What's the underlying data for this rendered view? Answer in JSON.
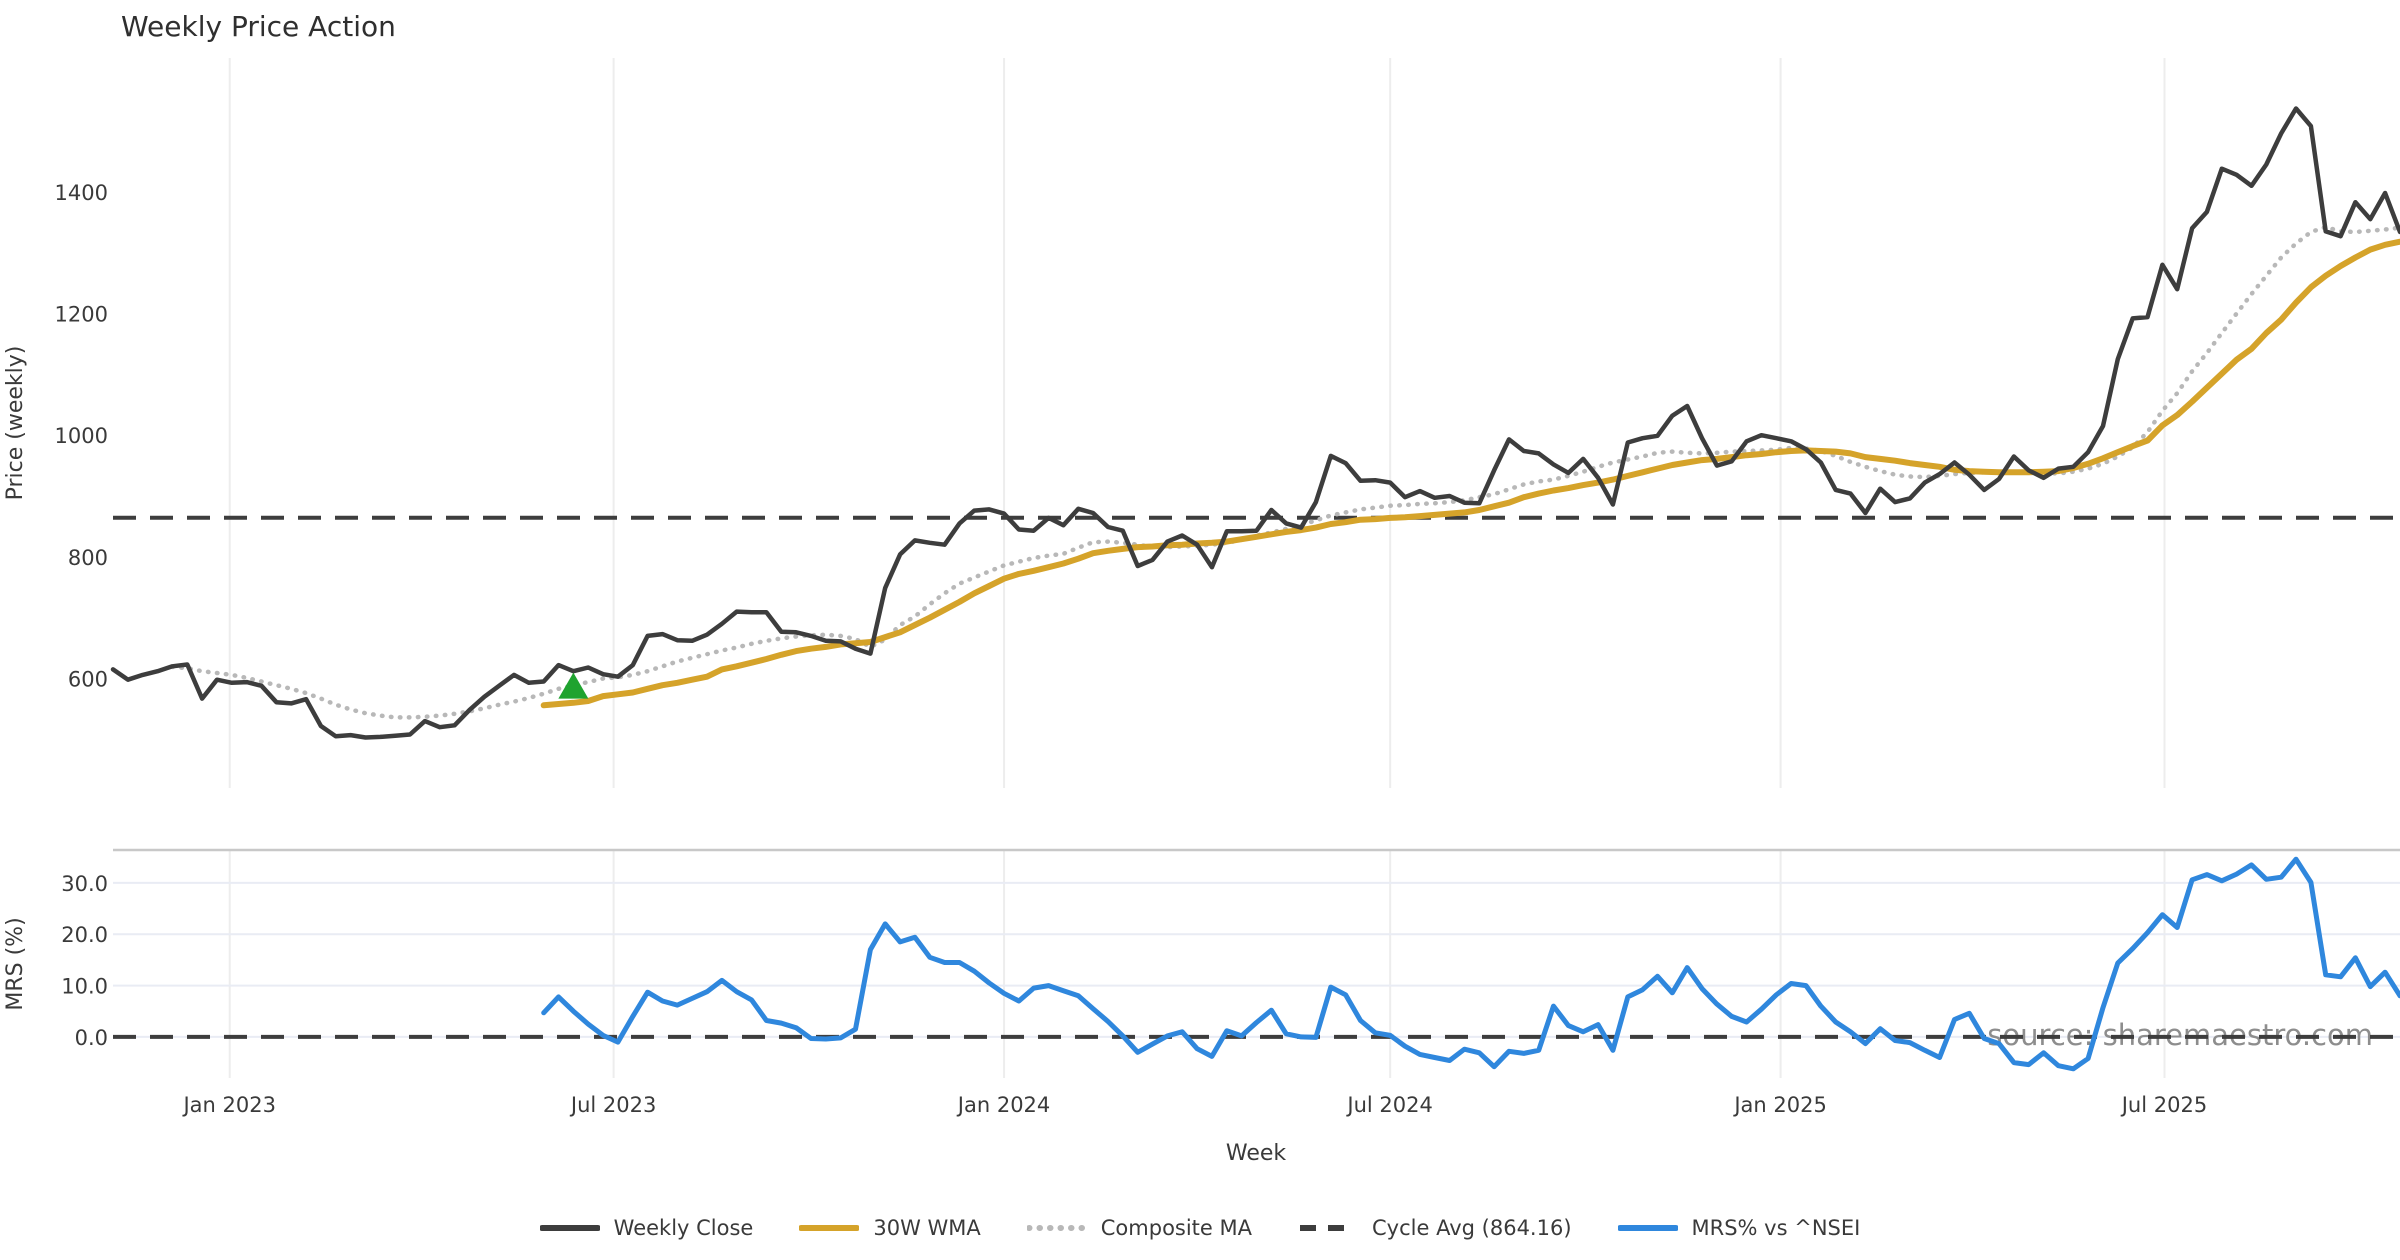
{
  "page": {
    "title": "Weekly Price Action",
    "watermark": "source: sharemaestro.com"
  },
  "colors": {
    "close": "#3d3d3d",
    "wma": "#d5a32a",
    "composite": "#b8b8b8",
    "cycle_avg": "#3d3d3d",
    "mrs": "#2f87dd",
    "marker_green": "#1fa32f",
    "grid_vertical": "#ededed",
    "grid_horizontal": "#e9ecf4",
    "panel_spine": "#c8c8c8",
    "text": "#3a3a3a",
    "watermark_text": "#8d8d8d"
  },
  "legend": [
    {
      "label": "Weekly Close",
      "color": "#3d3d3d",
      "style": "solid"
    },
    {
      "label": "30W WMA",
      "color": "#d5a32a",
      "style": "solid"
    },
    {
      "label": "Composite MA",
      "color": "#b8b8b8",
      "style": "dotted"
    },
    {
      "label": "Cycle Avg (864.16)",
      "color": "#3d3d3d",
      "style": "dashed"
    },
    {
      "label": "MRS% vs ^NSEI",
      "color": "#2f87dd",
      "style": "solid"
    }
  ],
  "chart_data": [
    {
      "type": "line",
      "panel": "price",
      "title": "Weekly Price Action",
      "xlabel": "Week",
      "ylabel": "Price (weekly)",
      "ylim": [
        420,
        1620
      ],
      "grid": "vertical-only",
      "yticks": [
        {
          "value": 600,
          "label": "600"
        },
        {
          "value": 800,
          "label": "800"
        },
        {
          "value": 1000,
          "label": "1000"
        },
        {
          "value": 1200,
          "label": "1200"
        },
        {
          "value": 1400,
          "label": "1400"
        }
      ],
      "x_ticks": [
        {
          "week": 7.86,
          "label": "Jan 2023"
        },
        {
          "week": 33.71,
          "label": "Jul 2023"
        },
        {
          "week": 60.0,
          "label": "Jan 2024"
        },
        {
          "week": 86.0,
          "label": "Jul 2024"
        },
        {
          "week": 112.29,
          "label": "Jan 2025"
        },
        {
          "week": 138.14,
          "label": "Jul 2025"
        }
      ],
      "hlines": [
        {
          "name": "Cycle Avg (864.16)",
          "value": 864.16,
          "style": "dashed",
          "color": "#3d3d3d"
        }
      ],
      "markers": [
        {
          "shape": "triangle-up",
          "week": 31,
          "price": 585,
          "color": "#1fa32f"
        }
      ],
      "series": [
        {
          "name": "Composite MA",
          "color": "#b8b8b8",
          "style": "dotted",
          "width": 4.5,
          "start_week": 4,
          "values": [
            619,
            617,
            612,
            609,
            606,
            601,
            595,
            589,
            583,
            576,
            567,
            557,
            549,
            543,
            539,
            536,
            536,
            537,
            539,
            542,
            546,
            551,
            557,
            562,
            568,
            575,
            583,
            589,
            594,
            600,
            602,
            606,
            612,
            620,
            628,
            634,
            640,
            646,
            651,
            657,
            662,
            666,
            669,
            671,
            672,
            670,
            665,
            652,
            664,
            688,
            702,
            722,
            740,
            756,
            766,
            776,
            786,
            792,
            798,
            802,
            805,
            815,
            824,
            825,
            823,
            820,
            816,
            816,
            817,
            818,
            820,
            823,
            828,
            835,
            840,
            846,
            852,
            860,
            868,
            873,
            878,
            881,
            884,
            885,
            887,
            888,
            890,
            893,
            898,
            903,
            911,
            919,
            924,
            927,
            933,
            940,
            948,
            955,
            960,
            965,
            971,
            973,
            971,
            970,
            971,
            973,
            974,
            975,
            976,
            979,
            978,
            974,
            966,
            956,
            948,
            941,
            935,
            932,
            931,
            933,
            936,
            938,
            939,
            939,
            939,
            939,
            938,
            937,
            940,
            945,
            953,
            965,
            980,
            1005,
            1040,
            1069,
            1105,
            1135,
            1168,
            1200,
            1232,
            1262,
            1292,
            1315,
            1334,
            1342,
            1335,
            1334,
            1336,
            1338,
            1341
          ]
        },
        {
          "name": "30W WMA",
          "color": "#d5a32a",
          "style": "solid",
          "width": 6,
          "start_week": 29,
          "values": [
            556,
            558,
            560,
            563,
            571,
            574,
            577,
            583,
            589,
            593,
            598,
            603,
            615,
            620,
            626,
            632,
            639,
            645,
            649,
            652,
            656,
            658,
            660,
            668,
            676,
            688,
            700,
            713,
            726,
            740,
            752,
            764,
            772,
            777,
            783,
            789,
            797,
            806,
            810,
            813,
            816,
            817,
            819,
            820,
            822,
            823,
            825,
            829,
            833,
            837,
            841,
            844,
            848,
            854,
            857,
            861,
            862,
            864,
            865,
            867,
            869,
            871,
            873,
            877,
            883,
            889,
            898,
            904,
            909,
            913,
            918,
            922,
            927,
            933,
            939,
            945,
            951,
            955,
            959,
            961,
            964,
            967,
            969,
            972,
            974,
            975,
            974,
            973,
            970,
            964,
            961,
            958,
            954,
            951,
            948,
            943,
            941,
            940,
            939,
            939,
            939,
            940,
            941,
            946,
            953,
            962,
            972,
            982,
            991,
            1016,
            1033,
            1055,
            1078,
            1101,
            1124,
            1142,
            1168,
            1190,
            1218,
            1243,
            1262,
            1278,
            1292,
            1305,
            1313,
            1318
          ]
        },
        {
          "name": "Weekly Close",
          "color": "#3d3d3d",
          "style": "solid",
          "width": 4.5,
          "start_week": 0,
          "values": [
            615,
            598,
            606,
            612,
            620,
            623,
            567,
            598,
            593,
            594,
            588,
            561,
            559,
            566,
            522,
            505,
            507,
            503,
            504,
            506,
            508,
            530,
            520,
            523,
            548,
            570,
            588,
            606,
            593,
            595,
            622,
            612,
            618,
            607,
            603,
            622,
            670,
            673,
            663,
            662,
            672,
            690,
            710,
            709,
            709,
            677,
            676,
            670,
            662,
            661,
            649,
            641,
            749,
            804,
            827,
            823,
            820,
            855,
            876,
            878,
            871,
            845,
            843,
            864,
            852,
            879,
            872,
            849,
            843,
            785,
            795,
            825,
            835,
            820,
            783,
            842,
            842,
            843,
            877,
            855,
            848,
            890,
            966,
            954,
            925,
            926,
            922,
            898,
            908,
            897,
            900,
            889,
            888,
            942,
            993,
            974,
            970,
            952,
            938,
            961,
            930,
            886,
            988,
            995,
            999,
            1032,
            1048,
            995,
            950,
            957,
            990,
            1000,
            995,
            990,
            977,
            955,
            910,
            904,
            872,
            912,
            890,
            896,
            922,
            936,
            955,
            935,
            910,
            928,
            965,
            942,
            930,
            945,
            948,
            972,
            1015,
            1125,
            1192,
            1194,
            1280,
            1240,
            1340,
            1367,
            1438,
            1428,
            1410,
            1445,
            1496,
            1537,
            1508,
            1335,
            1327,
            1383,
            1355,
            1398,
            1334
          ]
        }
      ]
    },
    {
      "type": "line",
      "panel": "mrs",
      "ylabel": "MRS (%)",
      "ylim": [
        -8,
        36.4
      ],
      "grid": "both",
      "yticks": [
        {
          "value": 0,
          "label": "0.0"
        },
        {
          "value": 10,
          "label": "10.0"
        },
        {
          "value": 20,
          "label": "20.0"
        },
        {
          "value": 30,
          "label": "30.0"
        }
      ],
      "hlines": [
        {
          "name": "zero-line",
          "value": 0,
          "style": "dashed",
          "color": "#3d3d3d"
        }
      ],
      "series": [
        {
          "name": "MRS% vs ^NSEI",
          "color": "#2f87dd",
          "style": "solid",
          "width": 5,
          "start_week": 29,
          "values": [
            4.7,
            7.8,
            5.0,
            2.5,
            0.3,
            -1.0,
            4.0,
            8.7,
            7.0,
            6.2,
            7.5,
            8.8,
            11.0,
            8.8,
            7.2,
            3.2,
            2.7,
            1.8,
            -0.3,
            -0.4,
            -0.2,
            1.5,
            17.0,
            22.0,
            18.5,
            19.4,
            15.5,
            14.5,
            14.5,
            12.8,
            10.5,
            8.5,
            7.0,
            9.5,
            10.0,
            9.0,
            8.0,
            5.5,
            3.0,
            0.2,
            -3.0,
            -1.4,
            0.2,
            1.0,
            -2.3,
            -3.8,
            1.2,
            0.2,
            2.8,
            5.2,
            0.6,
            0.0,
            -0.1,
            9.7,
            8.2,
            3.2,
            0.8,
            0.3,
            -1.8,
            -3.4,
            -4.0,
            -4.6,
            -2.4,
            -3.1,
            -5.8,
            -2.8,
            -3.2,
            -2.6,
            6.0,
            2.2,
            1.0,
            2.4,
            -2.6,
            7.8,
            9.2,
            11.8,
            8.6,
            13.5,
            9.4,
            6.4,
            4.0,
            2.9,
            5.4,
            8.2,
            10.4,
            10.0,
            6.0,
            2.9,
            1.0,
            -1.3,
            1.6,
            -0.7,
            -1.1,
            -2.6,
            -4.0,
            3.4,
            4.6,
            -0.3,
            -1.3,
            -5.0,
            -5.4,
            -3.1,
            -5.6,
            -6.2,
            -4.2,
            5.7,
            14.4,
            17.2,
            20.3,
            23.8,
            21.3,
            30.6,
            31.6,
            30.4,
            31.7,
            33.5,
            30.7,
            31.1,
            34.6,
            30.1,
            12.1,
            11.7,
            15.4,
            9.8,
            12.6,
            8.0
          ]
        }
      ]
    }
  ]
}
